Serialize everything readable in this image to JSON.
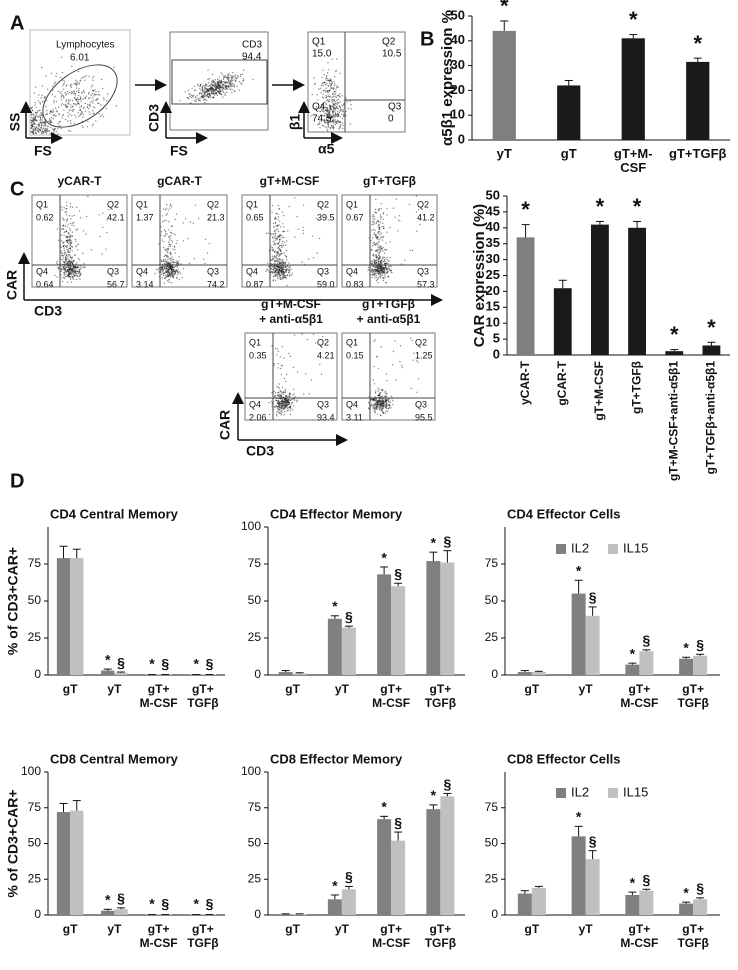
{
  "panel_labels": [
    "A",
    "B",
    "C",
    "D"
  ],
  "flow_a": [
    {
      "x_label": "FS",
      "y_label": "SS",
      "gate_name": "Lymphocytes",
      "gate_value": "6.01"
    },
    {
      "x_label": "FS",
      "y_label": "CD3",
      "gate_name": "CD3",
      "gate_value": "94.4"
    },
    {
      "x_label": "α5",
      "y_label": "β1",
      "quadrants": [
        {
          "name": "Q1",
          "value": "15.0"
        },
        {
          "name": "Q2",
          "value": "10.5"
        },
        {
          "name": "Q4",
          "value": "74.5"
        },
        {
          "name": "Q3",
          "value": "0"
        }
      ]
    }
  ],
  "flow_c": {
    "x_label": "CD3",
    "y_label": "CAR",
    "plots": [
      {
        "title": [
          "yCAR-T"
        ],
        "quadrants": [
          {
            "name": "Q1",
            "value": "0.62"
          },
          {
            "name": "Q2",
            "value": "42.1"
          },
          {
            "name": "Q4",
            "value": "0.64"
          },
          {
            "name": "Q3",
            "value": "56.7"
          }
        ]
      },
      {
        "title": [
          "gCAR-T"
        ],
        "quadrants": [
          {
            "name": "Q1",
            "value": "1.37"
          },
          {
            "name": "Q2",
            "value": "21.3"
          },
          {
            "name": "Q4",
            "value": "3.14"
          },
          {
            "name": "Q3",
            "value": "74.2"
          }
        ]
      },
      {
        "title": [
          "gT+M-CSF"
        ],
        "quadrants": [
          {
            "name": "Q1",
            "value": "0.65"
          },
          {
            "name": "Q2",
            "value": "39.5"
          },
          {
            "name": "Q4",
            "value": "0.87"
          },
          {
            "name": "Q3",
            "value": "59.0"
          }
        ]
      },
      {
        "title": [
          "gT+TGFβ"
        ],
        "quadrants": [
          {
            "name": "Q1",
            "value": "0.67"
          },
          {
            "name": "Q2",
            "value": "41.2"
          },
          {
            "name": "Q4",
            "value": "0.83"
          },
          {
            "name": "Q3",
            "value": "57.3"
          }
        ]
      },
      {
        "title": [
          "gT+M-CSF",
          "+ anti-α5β1"
        ],
        "quadrants": [
          {
            "name": "Q1",
            "value": "0.35"
          },
          {
            "name": "Q2",
            "value": "4.21"
          },
          {
            "name": "Q4",
            "value": "2.06"
          },
          {
            "name": "Q3",
            "value": "93.4"
          }
        ]
      },
      {
        "title": [
          "gT+TGFβ",
          "+ anti-α5β1"
        ],
        "quadrants": [
          {
            "name": "Q1",
            "value": "0.15"
          },
          {
            "name": "Q2",
            "value": "1.25"
          },
          {
            "name": "Q4",
            "value": "3.11"
          },
          {
            "name": "Q3",
            "value": "95.5"
          }
        ]
      }
    ]
  },
  "chart_data": [
    {
      "type": "bar",
      "y_label": "α5β1 expression %",
      "categories": [
        "yT",
        "gT",
        "gT+M-CSF",
        "gT+TGFβ"
      ],
      "values": [
        44,
        22,
        41,
        31.5
      ],
      "errors": [
        4,
        2,
        1.5,
        1.5
      ],
      "colors": [
        "#7f7f7f",
        "#1a1a1a",
        "#1a1a1a",
        "#1a1a1a"
      ],
      "significance": [
        "*",
        null,
        "*",
        "*"
      ],
      "ylim": [
        0,
        50
      ],
      "yticks": [
        0,
        10,
        20,
        30,
        40,
        50
      ]
    },
    {
      "type": "bar",
      "y_label": "CAR expression (%)",
      "categories": [
        "yCAR-T",
        "gCAR-T",
        "gT+M-CSF",
        "gT+TGFβ",
        "gT+M-CSF+anti-α5β1",
        "gT+TGFβ+anti-α5β1"
      ],
      "values": [
        37,
        21,
        41,
        40,
        1.2,
        3
      ],
      "errors": [
        4,
        2.5,
        1,
        2,
        0.5,
        1
      ],
      "colors": [
        "#7f7f7f",
        "#1a1a1a",
        "#1a1a1a",
        "#1a1a1a",
        "#1a1a1a",
        "#1a1a1a"
      ],
      "significance": [
        "*",
        null,
        "*",
        "*",
        "*",
        "*"
      ],
      "ylim": [
        0,
        50
      ],
      "yticks": [
        0,
        5,
        10,
        15,
        20,
        25,
        30,
        35,
        40,
        45,
        50
      ]
    },
    {
      "type": "bar",
      "title": "CD4 Central Memory",
      "y_label": "% of CD3+CAR+",
      "categories": [
        "gT",
        "yT",
        "gT+\nM-CSF",
        "gT+\nTGFβ"
      ],
      "series": [
        {
          "color": "#808080",
          "values": [
            79,
            3,
            0.3,
            0.3
          ],
          "errors": [
            8,
            1,
            0,
            0
          ],
          "significance": [
            null,
            "*",
            "*",
            "*"
          ]
        },
        {
          "color": "#c0c0c0",
          "values": [
            79,
            1.5,
            0.3,
            0.3
          ],
          "errors": [
            6,
            0.5,
            0,
            0
          ],
          "significance": [
            null,
            "§",
            "§",
            "§"
          ]
        }
      ],
      "ylim": [
        0,
        100
      ],
      "yticks": [
        0,
        25,
        50,
        75
      ]
    },
    {
      "type": "bar",
      "title": "CD4 Effector Memory",
      "categories": [
        "gT",
        "yT",
        "gT+\nM-CSF",
        "gT+\nTGFβ"
      ],
      "series": [
        {
          "color": "#808080",
          "values": [
            2,
            38,
            68,
            77
          ],
          "errors": [
            1,
            2,
            5,
            6
          ],
          "significance": [
            null,
            "*",
            "*",
            "*"
          ]
        },
        {
          "color": "#c0c0c0",
          "values": [
            1,
            32,
            60,
            76
          ],
          "errors": [
            0.5,
            1,
            2,
            8
          ],
          "significance": [
            null,
            "§",
            "§",
            "§"
          ]
        }
      ],
      "ylim": [
        0,
        100
      ],
      "yticks": [
        0,
        25,
        50,
        75,
        100
      ]
    },
    {
      "type": "bar",
      "title": "CD4 Effector Cells",
      "legend": true,
      "categories": [
        "gT",
        "yT",
        "gT+\nM-CSF",
        "gT+\nTGFβ"
      ],
      "series": [
        {
          "name": "IL2",
          "color": "#808080",
          "values": [
            2,
            55,
            7,
            11
          ],
          "errors": [
            1,
            9,
            1,
            1
          ],
          "significance": [
            null,
            "*",
            "*",
            "*"
          ]
        },
        {
          "name": "IL15",
          "color": "#c0c0c0",
          "values": [
            2,
            40,
            16,
            13
          ],
          "errors": [
            0.5,
            6,
            1,
            1
          ],
          "significance": [
            null,
            "§",
            "§",
            "§"
          ]
        }
      ],
      "ylim": [
        0,
        100
      ],
      "yticks": [
        0,
        25,
        50,
        75
      ]
    },
    {
      "type": "bar",
      "title": "CD8 Central Memory",
      "y_label": "% of CD3+CAR+",
      "categories": [
        "gT",
        "yT",
        "gT+\nM-CSF",
        "gT+\nTGFβ"
      ],
      "series": [
        {
          "color": "#808080",
          "values": [
            72,
            3,
            0.3,
            0.3
          ],
          "errors": [
            6,
            1,
            0,
            0
          ],
          "significance": [
            null,
            "*",
            "*",
            "*"
          ]
        },
        {
          "color": "#c0c0c0",
          "values": [
            73,
            4,
            0.3,
            0.3
          ],
          "errors": [
            7,
            1,
            0,
            0
          ],
          "significance": [
            null,
            "§",
            "§",
            "§"
          ]
        }
      ],
      "ylim": [
        0,
        100
      ],
      "yticks": [
        0,
        25,
        50,
        75,
        100
      ]
    },
    {
      "type": "bar",
      "title": "CD8 Effector Memory",
      "categories": [
        "gT",
        "yT",
        "gT+\nM-CSF",
        "gT+\nTGFβ"
      ],
      "series": [
        {
          "color": "#808080",
          "values": [
            0.5,
            11,
            67,
            74
          ],
          "errors": [
            0.3,
            3,
            2,
            3
          ],
          "significance": [
            null,
            "*",
            "*",
            "*"
          ]
        },
        {
          "color": "#c0c0c0",
          "values": [
            0.5,
            18,
            52,
            83
          ],
          "errors": [
            0.3,
            2,
            6,
            2
          ],
          "significance": [
            null,
            "§",
            "§",
            "§"
          ]
        }
      ],
      "ylim": [
        0,
        100
      ],
      "yticks": [
        0,
        25,
        50,
        75,
        100
      ]
    },
    {
      "type": "bar",
      "title": "CD8 Effector Cells",
      "legend": true,
      "categories": [
        "gT",
        "yT",
        "gT+\nM-CSF",
        "gT+\nTGFβ"
      ],
      "series": [
        {
          "name": "IL2",
          "color": "#808080",
          "values": [
            15,
            55,
            14,
            8
          ],
          "errors": [
            2,
            7,
            2,
            1
          ],
          "significance": [
            null,
            "*",
            "*",
            "*"
          ]
        },
        {
          "name": "IL15",
          "color": "#c0c0c0",
          "values": [
            19,
            39,
            17,
            11
          ],
          "errors": [
            1,
            6,
            1,
            1
          ],
          "significance": [
            null,
            "§",
            "§",
            "§"
          ]
        }
      ],
      "ylim": [
        0,
        100
      ],
      "yticks": [
        0,
        25,
        50,
        75
      ]
    }
  ]
}
